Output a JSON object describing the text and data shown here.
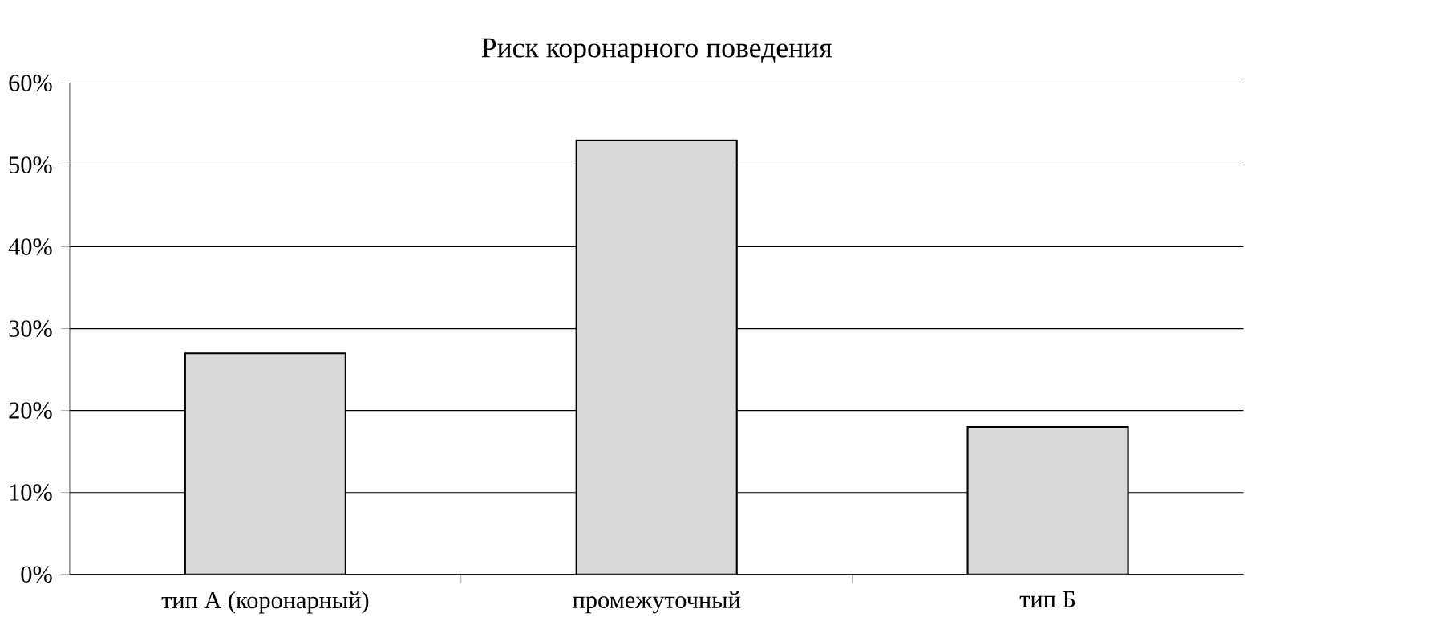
{
  "chart_data": {
    "type": "bar",
    "title": "Риск коронарного поведения",
    "categories": [
      "тип А (коронарный)",
      "промежуточный",
      "тип Б"
    ],
    "values": [
      27,
      53,
      18
    ],
    "color": "#d9d9d9",
    "ylim": [
      0,
      60
    ],
    "yticks": [
      {
        "value": 0,
        "label": "0%"
      },
      {
        "value": 10,
        "label": "10%"
      },
      {
        "value": 20,
        "label": "20%"
      },
      {
        "value": 30,
        "label": "30%"
      },
      {
        "value": 40,
        "label": "40%"
      },
      {
        "value": 50,
        "label": "50%"
      },
      {
        "value": 60,
        "label": "60%"
      }
    ],
    "grid": "y"
  }
}
